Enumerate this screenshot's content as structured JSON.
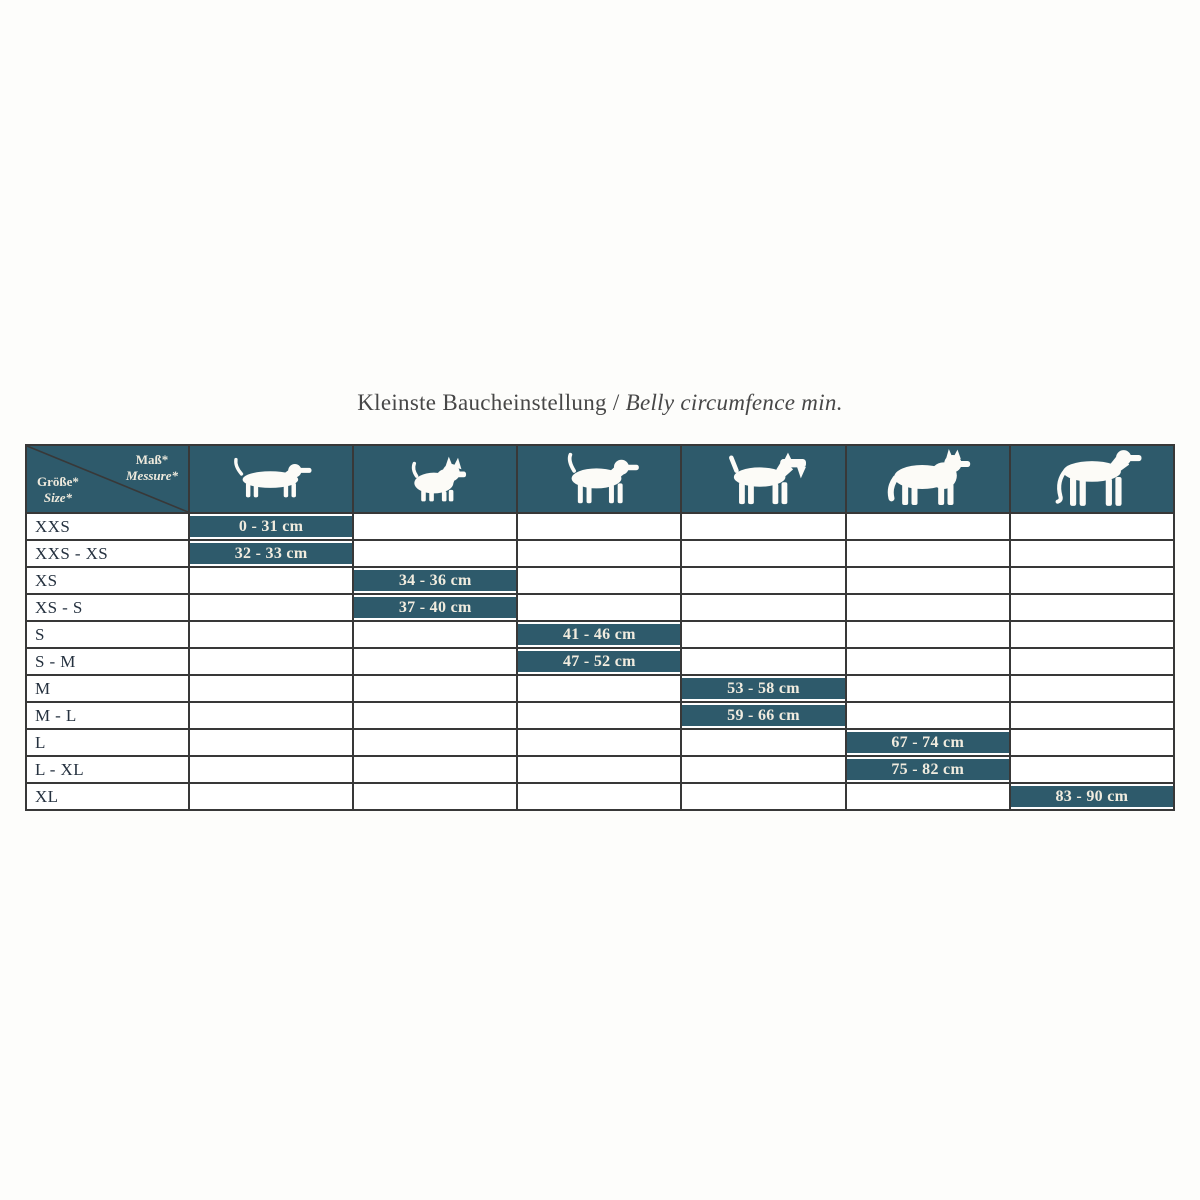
{
  "title": {
    "german": "Kleinste Baucheinstellung",
    "separator": " / ",
    "english": "Belly circumfence min."
  },
  "table": {
    "corner": {
      "mass_label": "Maß*",
      "messure_label": "Messure*",
      "groesse_label": "Größe*",
      "size_label": "Size*"
    },
    "column_icons": [
      "dachshund-icon",
      "small-terrier-icon",
      "beagle-icon",
      "airedale-terrier-icon",
      "husky-icon",
      "great-dane-icon"
    ]
  },
  "chart_data": {
    "type": "table",
    "title": "Kleinste Baucheinstellung / Belly circumfence min.",
    "columns": [
      "Dachshund",
      "Small Terrier",
      "Beagle",
      "Airedale Terrier",
      "Husky",
      "Great Dane"
    ],
    "rows": [
      {
        "label": "XXS",
        "col": 0,
        "value": "0 - 31 cm"
      },
      {
        "label": "XXS - XS",
        "col": 0,
        "value": "32 - 33 cm"
      },
      {
        "label": "XS",
        "col": 1,
        "value": "34 - 36 cm"
      },
      {
        "label": "XS - S",
        "col": 1,
        "value": "37 - 40 cm"
      },
      {
        "label": "S",
        "col": 2,
        "value": "41 - 46 cm"
      },
      {
        "label": "S - M",
        "col": 2,
        "value": "47 - 52 cm"
      },
      {
        "label": "M",
        "col": 3,
        "value": "53 - 58 cm"
      },
      {
        "label": "M - L",
        "col": 3,
        "value": "59 - 66 cm"
      },
      {
        "label": "L",
        "col": 4,
        "value": "67 - 74 cm"
      },
      {
        "label": "L - XL",
        "col": 4,
        "value": "75 - 82 cm"
      },
      {
        "label": "XL",
        "col": 5,
        "value": "83 - 90 cm"
      }
    ]
  },
  "colors": {
    "teal": "#2e5a6b",
    "border": "#383838",
    "value_text": "#f1ecdf",
    "label_text": "#25313f",
    "title_text": "#474747"
  }
}
